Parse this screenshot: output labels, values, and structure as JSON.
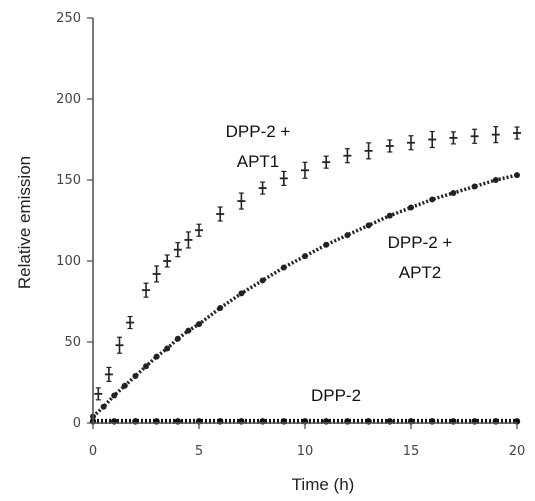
{
  "chart_data": {
    "type": "scatter",
    "xlabel": "Time (h)",
    "ylabel": "Relative emission",
    "xlim": [
      0,
      20
    ],
    "ylim": [
      0,
      250
    ],
    "x_ticks": [
      "0",
      "5",
      "10",
      "15",
      "20"
    ],
    "y_ticks": [
      "0",
      "50",
      "100",
      "150",
      "200",
      "250"
    ],
    "grid": false,
    "series": [
      {
        "name": "DPP-2 + APT1",
        "label_lines": [
          "DPP-2 +",
          "APT1"
        ],
        "color": "#222222",
        "marker": "plus-with-errorbar",
        "x": [
          0.25,
          0.75,
          1.25,
          1.75,
          2.5,
          3.0,
          3.5,
          4.0,
          4.5,
          5.0,
          6.0,
          7.0,
          8.0,
          9.0,
          10.0,
          11.0,
          12.0,
          13.0,
          14.0,
          15.0,
          16.0,
          17.0,
          18.0,
          19.0,
          20.0
        ],
        "y": [
          18,
          30,
          48,
          62,
          82,
          92,
          100,
          107,
          113,
          119,
          129,
          137,
          145,
          151,
          156,
          161,
          165,
          168,
          171,
          173,
          175,
          176,
          177,
          178,
          179
        ]
      },
      {
        "name": "DPP-2 + APT2",
        "label_lines": [
          "DPP-2 +",
          "APT2"
        ],
        "color": "#222222",
        "marker": "dot",
        "x": [
          0,
          0.5,
          1,
          1.5,
          2,
          2.5,
          3,
          3.5,
          4,
          4.5,
          5,
          6,
          7,
          8,
          9,
          10,
          11,
          12,
          13,
          14,
          15,
          16,
          17,
          18,
          19,
          20
        ],
        "y": [
          4,
          10,
          17,
          23,
          29,
          35,
          41,
          46,
          52,
          57,
          61,
          71,
          80,
          88,
          96,
          103,
          110,
          116,
          122,
          128,
          133,
          138,
          142,
          146,
          150,
          153
        ]
      },
      {
        "name": "DPP-2",
        "label_lines": [
          "DPP-2"
        ],
        "color": "#111111",
        "marker": "dot",
        "x": [
          0,
          1,
          2,
          3,
          4,
          5,
          6,
          7,
          8,
          9,
          10,
          11,
          12,
          13,
          14,
          15,
          16,
          17,
          18,
          19,
          20
        ],
        "y": [
          1,
          1,
          1,
          1,
          1,
          1,
          1,
          1,
          1,
          1,
          1,
          1,
          1,
          1,
          1,
          1,
          1,
          1,
          1,
          1,
          1
        ]
      }
    ]
  }
}
